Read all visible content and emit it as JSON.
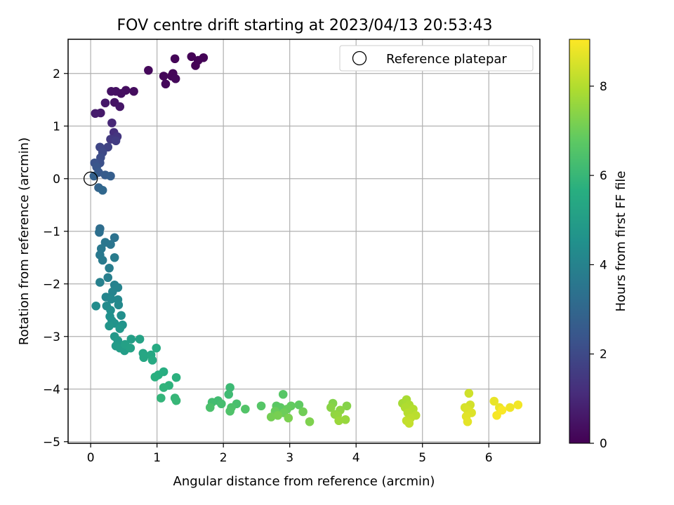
{
  "chart_data": {
    "type": "scatter",
    "title": "FOV centre drift starting at 2023/04/13 20:53:43",
    "xlabel": "Angular distance from reference (arcmin)",
    "ylabel": "Rotation from reference (arcmin)",
    "xlim": [
      -0.34,
      6.77
    ],
    "ylim": [
      -5.03,
      2.65
    ],
    "xticks": [
      0,
      1,
      2,
      3,
      4,
      5,
      6
    ],
    "yticks": [
      -5,
      -4,
      -3,
      -2,
      -1,
      0,
      1,
      2
    ],
    "grid": true,
    "legend": {
      "placement": "top-right",
      "entries": [
        "Reference platepar"
      ]
    },
    "colorbar": {
      "label": "Hours from first FF file",
      "range": [
        0,
        9.05
      ],
      "ticks": [
        0,
        2,
        4,
        6,
        8
      ],
      "colormap": "viridis"
    },
    "reference_point": {
      "x": 0,
      "y": 0
    },
    "points": [
      [
        1.52,
        2.32,
        0.05
      ],
      [
        1.58,
        2.15,
        0.06
      ],
      [
        1.62,
        2.25,
        0.07
      ],
      [
        1.7,
        2.3,
        0.08
      ],
      [
        1.27,
        2.28,
        0.1
      ],
      [
        1.24,
        2.0,
        0.12
      ],
      [
        1.22,
        1.95,
        0.13
      ],
      [
        1.1,
        1.95,
        0.15
      ],
      [
        1.13,
        1.8,
        0.16
      ],
      [
        1.28,
        1.9,
        0.17
      ],
      [
        0.87,
        2.06,
        0.2
      ],
      [
        0.65,
        1.66,
        0.3
      ],
      [
        0.53,
        1.68,
        0.33
      ],
      [
        0.46,
        1.62,
        0.36
      ],
      [
        0.38,
        1.66,
        0.4
      ],
      [
        0.31,
        1.66,
        0.43
      ],
      [
        0.36,
        1.45,
        0.5
      ],
      [
        0.44,
        1.37,
        0.55
      ],
      [
        0.22,
        1.44,
        0.6
      ],
      [
        0.15,
        1.25,
        0.65
      ],
      [
        0.07,
        1.24,
        0.7
      ],
      [
        0.32,
        1.06,
        1.0
      ],
      [
        0.35,
        0.88,
        1.2
      ],
      [
        0.4,
        0.8,
        1.4
      ],
      [
        0.3,
        0.75,
        1.5
      ],
      [
        0.38,
        0.72,
        1.6
      ],
      [
        0.26,
        0.6,
        1.8
      ],
      [
        0.14,
        0.6,
        1.9
      ],
      [
        0.18,
        0.5,
        2.0
      ],
      [
        0.15,
        0.4,
        2.1
      ],
      [
        0.14,
        0.3,
        2.2
      ],
      [
        0.06,
        0.3,
        2.3
      ],
      [
        0.09,
        0.22,
        2.4
      ],
      [
        0.12,
        0.12,
        2.5
      ],
      [
        0.22,
        0.07,
        2.6
      ],
      [
        0.3,
        0.05,
        2.7
      ],
      [
        0.05,
        0.05,
        2.8
      ],
      [
        0.12,
        -0.17,
        2.9
      ],
      [
        0.18,
        -0.22,
        3.0
      ],
      [
        0.14,
        -0.95,
        3.2
      ],
      [
        0.13,
        -1.02,
        3.3
      ],
      [
        0.36,
        -1.12,
        3.4
      ],
      [
        0.3,
        -1.25,
        3.5
      ],
      [
        0.22,
        -1.21,
        3.55
      ],
      [
        0.16,
        -1.33,
        3.6
      ],
      [
        0.14,
        -1.45,
        3.65
      ],
      [
        0.18,
        -1.55,
        3.7
      ],
      [
        0.36,
        -1.5,
        3.75
      ],
      [
        0.28,
        -1.7,
        3.8
      ],
      [
        0.26,
        -1.88,
        3.85
      ],
      [
        0.14,
        -1.97,
        3.9
      ],
      [
        0.36,
        -2.02,
        3.95
      ],
      [
        0.41,
        -2.07,
        4.0
      ],
      [
        0.33,
        -2.15,
        4.05
      ],
      [
        0.23,
        -2.25,
        4.1
      ],
      [
        0.31,
        -2.29,
        4.15
      ],
      [
        0.41,
        -2.3,
        4.2
      ],
      [
        0.42,
        -2.4,
        4.25
      ],
      [
        0.24,
        -2.42,
        4.3
      ],
      [
        0.08,
        -2.42,
        4.35
      ],
      [
        0.3,
        -2.5,
        4.4
      ],
      [
        0.46,
        -2.6,
        4.45
      ],
      [
        0.29,
        -2.62,
        4.5
      ],
      [
        0.32,
        -2.7,
        4.55
      ],
      [
        0.36,
        -2.75,
        4.6
      ],
      [
        0.48,
        -2.78,
        4.65
      ],
      [
        0.28,
        -2.8,
        4.7
      ],
      [
        0.44,
        -2.85,
        4.75
      ],
      [
        0.36,
        -3.0,
        4.8
      ],
      [
        0.41,
        -3.08,
        4.85
      ],
      [
        0.38,
        -3.18,
        4.9
      ],
      [
        0.44,
        -3.22,
        4.95
      ],
      [
        0.51,
        -3.27,
        5.0
      ],
      [
        0.61,
        -3.05,
        5.05
      ],
      [
        0.52,
        -3.15,
        5.1
      ],
      [
        0.6,
        -3.22,
        5.15
      ],
      [
        0.74,
        -3.05,
        5.2
      ],
      [
        0.79,
        -3.32,
        5.3
      ],
      [
        0.8,
        -3.4,
        5.35
      ],
      [
        0.91,
        -3.35,
        5.4
      ],
      [
        0.93,
        -3.45,
        5.45
      ],
      [
        0.99,
        -3.22,
        5.5
      ],
      [
        1.1,
        -3.67,
        5.6
      ],
      [
        1.02,
        -3.73,
        5.65
      ],
      [
        0.97,
        -3.77,
        5.7
      ],
      [
        1.29,
        -3.78,
        5.75
      ],
      [
        1.18,
        -3.93,
        5.8
      ],
      [
        1.1,
        -3.97,
        5.85
      ],
      [
        1.06,
        -4.17,
        5.9
      ],
      [
        1.27,
        -4.17,
        5.95
      ],
      [
        1.29,
        -4.22,
        6.0
      ],
      [
        2.1,
        -3.97,
        6.1
      ],
      [
        2.08,
        -4.1,
        6.15
      ],
      [
        1.92,
        -4.22,
        6.2
      ],
      [
        1.83,
        -4.25,
        6.25
      ],
      [
        1.97,
        -4.28,
        6.3
      ],
      [
        2.2,
        -4.28,
        6.35
      ],
      [
        1.8,
        -4.35,
        6.4
      ],
      [
        2.12,
        -4.35,
        6.45
      ],
      [
        2.1,
        -4.42,
        6.5
      ],
      [
        2.33,
        -4.38,
        6.55
      ],
      [
        2.57,
        -4.32,
        6.6
      ],
      [
        2.9,
        -4.1,
        6.65
      ],
      [
        2.8,
        -4.32,
        6.7
      ],
      [
        2.86,
        -4.35,
        6.75
      ],
      [
        3.14,
        -4.3,
        6.8
      ],
      [
        3.02,
        -4.32,
        6.85
      ],
      [
        2.96,
        -4.38,
        6.9
      ],
      [
        2.78,
        -4.42,
        6.95
      ],
      [
        2.91,
        -4.45,
        7.0
      ],
      [
        3.2,
        -4.43,
        7.05
      ],
      [
        2.72,
        -4.53,
        7.1
      ],
      [
        2.82,
        -4.5,
        7.15
      ],
      [
        2.98,
        -4.55,
        7.2
      ],
      [
        3.3,
        -4.62,
        7.25
      ],
      [
        3.65,
        -4.27,
        7.3
      ],
      [
        3.86,
        -4.32,
        7.35
      ],
      [
        3.62,
        -4.35,
        7.4
      ],
      [
        3.76,
        -4.4,
        7.45
      ],
      [
        3.68,
        -4.48,
        7.5
      ],
      [
        3.72,
        -4.5,
        7.55
      ],
      [
        3.84,
        -4.58,
        7.6
      ],
      [
        3.74,
        -4.6,
        7.65
      ],
      [
        4.7,
        -4.27,
        7.8
      ],
      [
        4.76,
        -4.2,
        7.85
      ],
      [
        4.8,
        -4.3,
        7.9
      ],
      [
        4.74,
        -4.35,
        7.95
      ],
      [
        4.86,
        -4.38,
        8.0
      ],
      [
        4.78,
        -4.45,
        8.05
      ],
      [
        4.9,
        -4.5,
        8.1
      ],
      [
        4.82,
        -4.55,
        8.15
      ],
      [
        4.76,
        -4.6,
        8.2
      ],
      [
        4.8,
        -4.65,
        8.25
      ],
      [
        5.7,
        -4.08,
        8.4
      ],
      [
        5.72,
        -4.3,
        8.45
      ],
      [
        5.64,
        -4.35,
        8.5
      ],
      [
        5.68,
        -4.4,
        8.55
      ],
      [
        5.74,
        -4.45,
        8.6
      ],
      [
        5.66,
        -4.52,
        8.65
      ],
      [
        5.68,
        -4.62,
        8.7
      ],
      [
        6.08,
        -4.23,
        8.75
      ],
      [
        6.16,
        -4.35,
        8.8
      ],
      [
        6.32,
        -4.35,
        8.85
      ],
      [
        6.44,
        -4.3,
        8.9
      ],
      [
        6.12,
        -4.5,
        8.95
      ],
      [
        6.2,
        -4.4,
        9.0
      ]
    ]
  }
}
